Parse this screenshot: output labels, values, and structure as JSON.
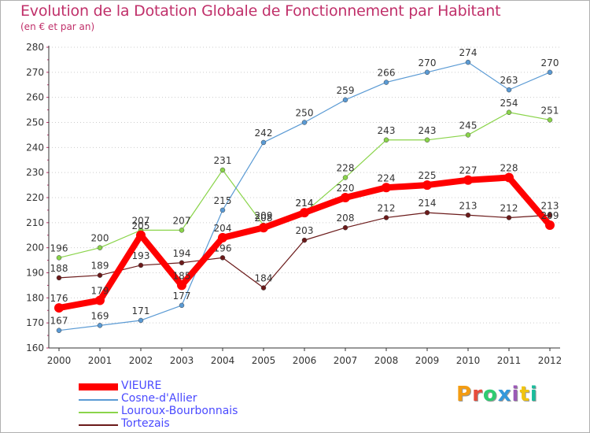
{
  "page": {
    "title": "Evolution de la Dotation Globale de Fonctionnement par Habitant",
    "subtitle": "(en € et par an)"
  },
  "logo": {
    "letters": [
      "P",
      "r",
      "o",
      "x",
      "i",
      "t",
      "i"
    ],
    "colors": [
      "#f39c12",
      "#e74c3c",
      "#2ecc71",
      "#3498db",
      "#9b59b6",
      "#f1c40f",
      "#1abc9c"
    ]
  },
  "chart_data": {
    "type": "line",
    "title": "Evolution de la Dotation Globale de Fonctionnement par Habitant",
    "subtitle": "(en € et par an)",
    "xlabel": "",
    "ylabel": "",
    "ylim": [
      160,
      280
    ],
    "ytick_step": 10,
    "x": [
      2000,
      2001,
      2002,
      2003,
      2004,
      2005,
      2006,
      2007,
      2008,
      2009,
      2010,
      2011,
      2012
    ],
    "grid": "horizontal dotted",
    "series": [
      {
        "name": "Tortezais",
        "color": "#6b1a1a",
        "values": [
          188,
          189,
          193,
          194,
          196,
          184,
          203,
          208,
          212,
          214,
          213,
          212,
          213
        ]
      },
      {
        "name": "Louroux-Bourbonnais",
        "color": "#8ad44a",
        "values": [
          196,
          200,
          207,
          207,
          231,
          209,
          214,
          228,
          243,
          243,
          245,
          254,
          251
        ]
      },
      {
        "name": "Cosne-d'Allier",
        "color": "#5a9ad4",
        "values": [
          167,
          169,
          171,
          177,
          215,
          242,
          250,
          259,
          266,
          270,
          274,
          263,
          270
        ]
      },
      {
        "name": "VIEURE",
        "color": "#ff0000",
        "values": [
          176,
          179,
          205,
          185,
          204,
          208,
          214,
          220,
          224,
          225,
          227,
          228,
          209
        ],
        "bold": true
      }
    ],
    "legend": [
      "VIEURE",
      "Cosne-d'Allier",
      "Louroux-Bourbonnais",
      "Tortezais"
    ],
    "legend_position": "bottom-left"
  }
}
